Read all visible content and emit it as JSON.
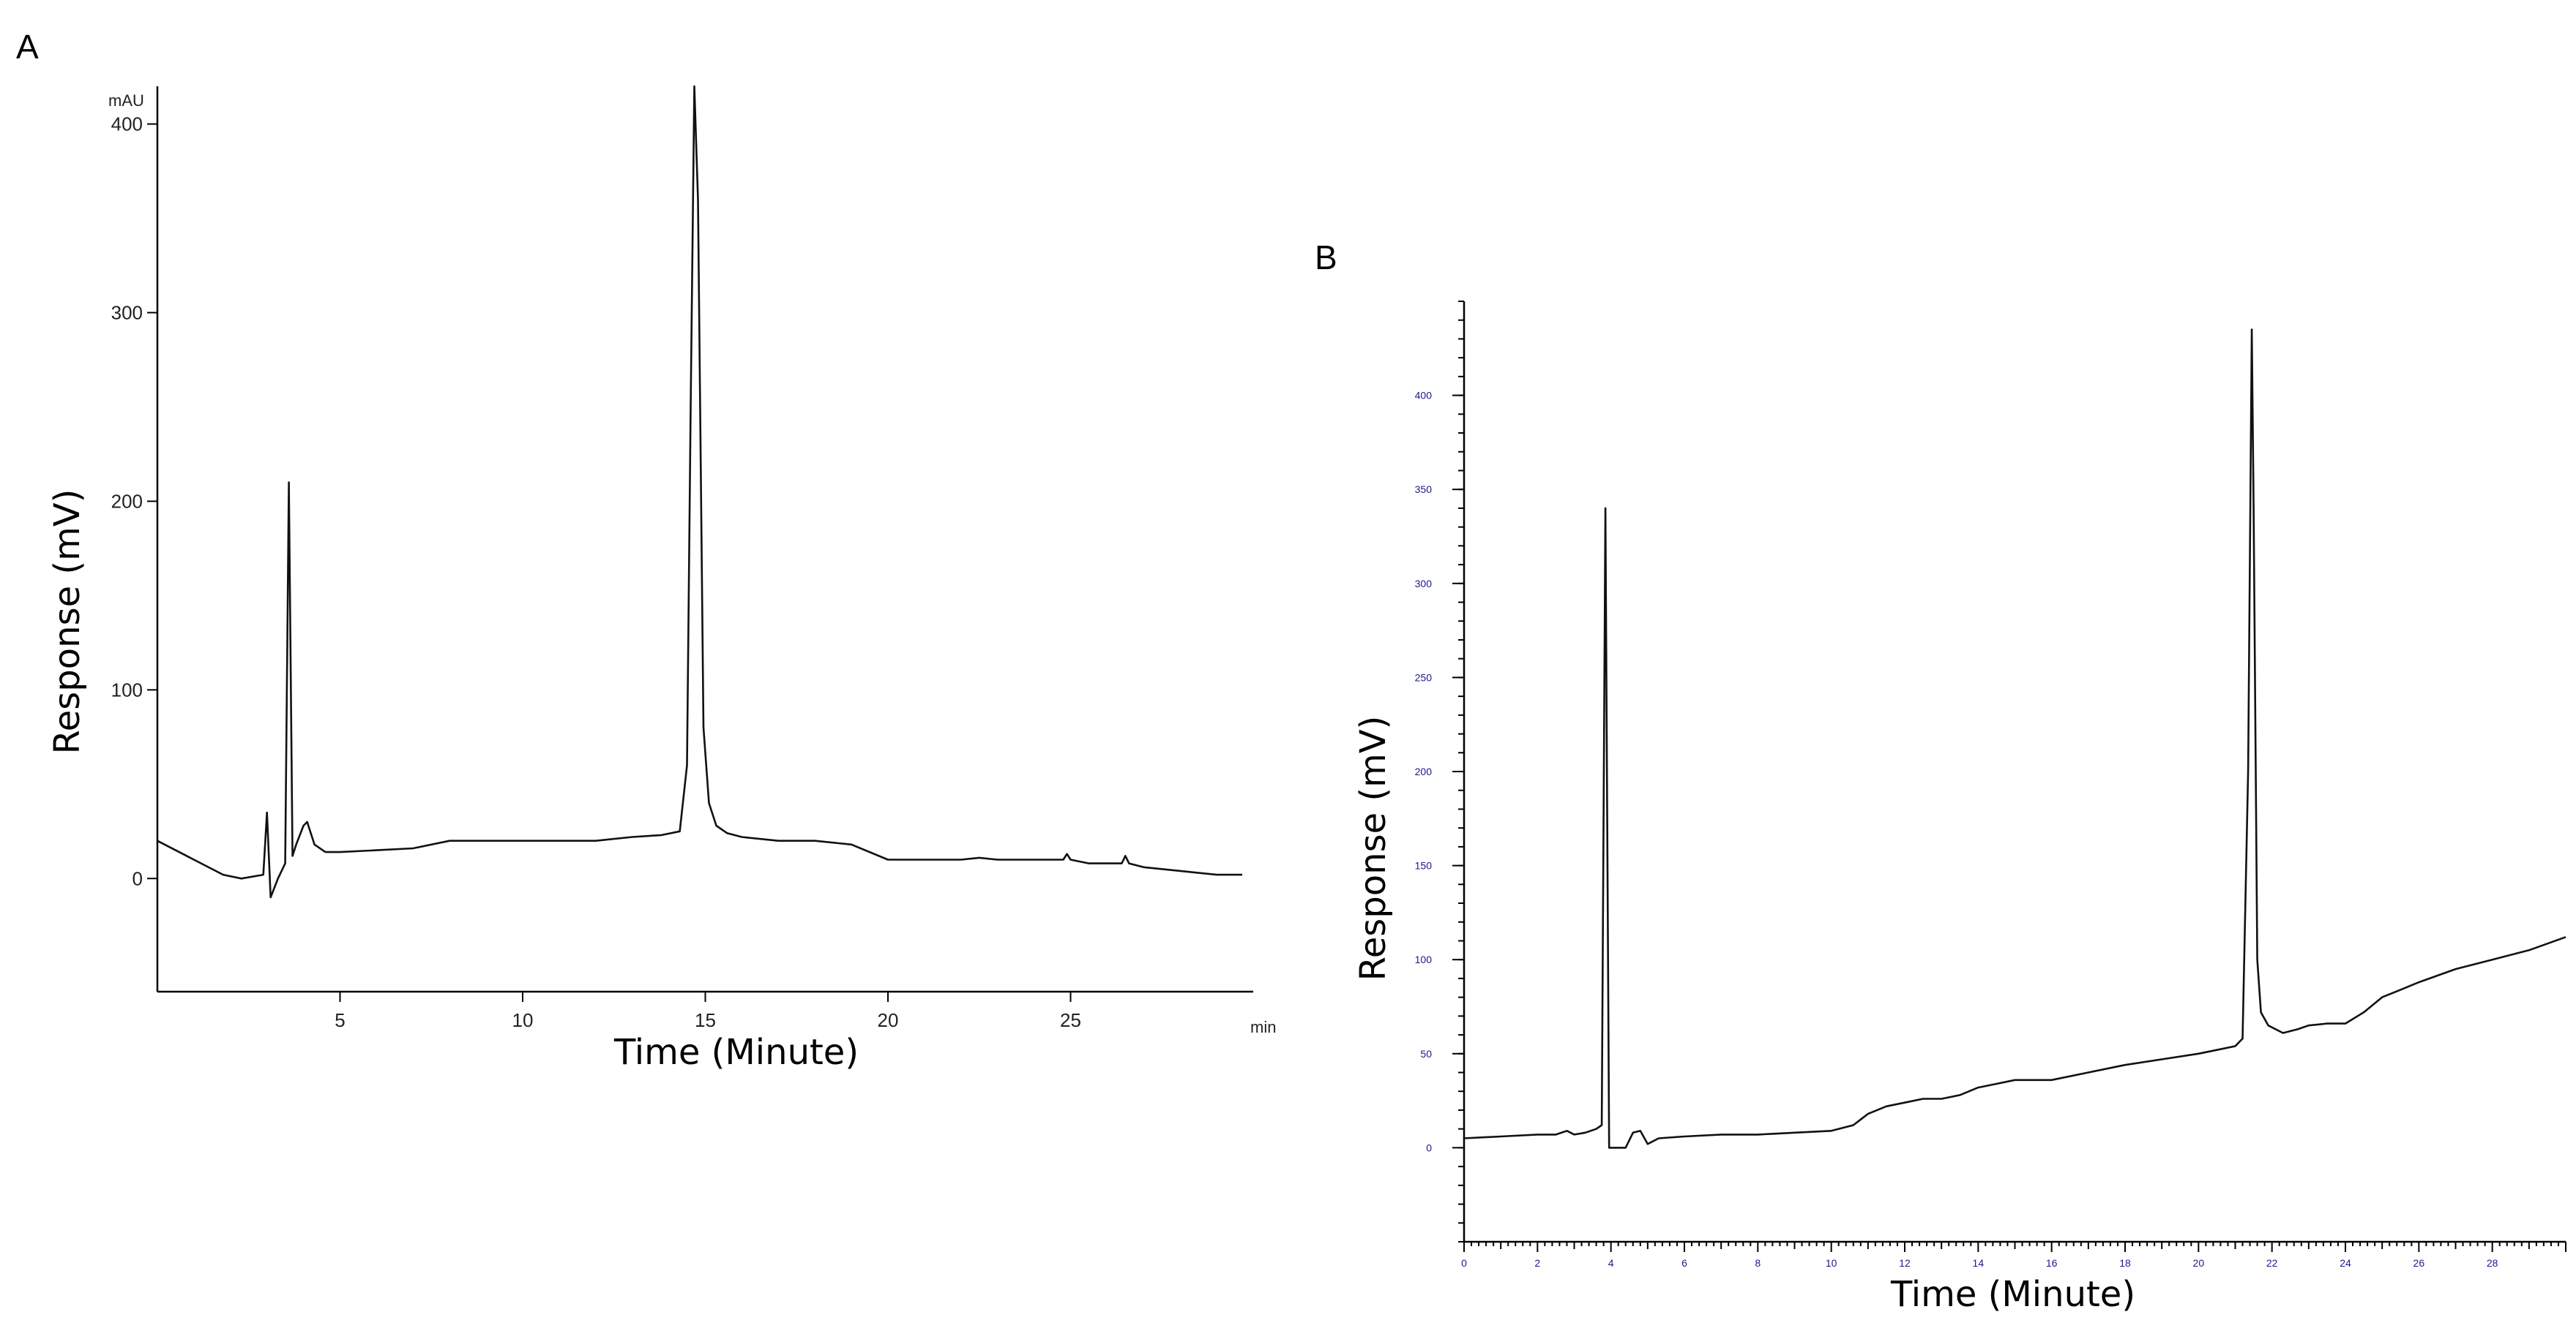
{
  "panels": [
    {
      "letter": "A"
    },
    {
      "letter": "B"
    }
  ],
  "chart_data": [
    {
      "type": "line",
      "panel": "A",
      "xlabel": "Time (Minute)",
      "ylabel": "Response (mV)",
      "y_unit_label": "mAU",
      "x_unit_label": "min",
      "xlim": [
        0,
        30
      ],
      "ylim": [
        -60,
        420
      ],
      "x_ticks": [
        5,
        10,
        15,
        20,
        25
      ],
      "y_ticks": [
        0,
        100,
        200,
        300,
        400
      ],
      "grid": false,
      "series": [
        {
          "x": [
            0,
            1,
            1.8,
            2.3,
            2.9,
            3.0,
            3.1,
            3.3,
            3.5,
            3.6,
            3.7,
            3.8,
            4.0,
            4.1,
            4.3,
            4.6,
            5,
            6,
            7,
            8,
            9,
            10,
            11,
            12,
            13,
            13.8,
            14.3,
            14.5,
            14.6,
            14.7,
            14.8,
            14.95,
            15.1,
            15.3,
            15.6,
            16,
            17,
            18,
            19,
            20,
            21,
            22,
            22.5,
            23,
            24,
            24.8,
            24.9,
            25.0,
            25.5,
            26.4,
            26.5,
            26.6,
            27,
            28,
            29,
            29.7
          ],
          "y": [
            20,
            10,
            2,
            0,
            2,
            35,
            -10,
            0,
            8,
            210,
            12,
            18,
            28,
            30,
            18,
            14,
            14,
            15,
            16,
            20,
            20,
            20,
            20,
            20,
            22,
            23,
            25,
            60,
            250,
            420,
            360,
            80,
            40,
            28,
            24,
            22,
            20,
            20,
            18,
            10,
            10,
            10,
            11,
            10,
            10,
            10,
            13,
            10,
            8,
            8,
            12,
            8,
            6,
            4,
            2,
            2
          ]
        }
      ]
    },
    {
      "type": "line",
      "panel": "B",
      "xlabel": "Time (Minute)",
      "ylabel": "Response (mV)",
      "xlim": [
        0,
        30
      ],
      "ylim": [
        -50,
        450
      ],
      "x_ticks": [
        0,
        2,
        4,
        6,
        8,
        10,
        12,
        14,
        16,
        18,
        20,
        22,
        24,
        26,
        28
      ],
      "y_ticks": [
        0,
        50,
        100,
        150,
        200,
        250,
        300,
        350,
        400
      ],
      "grid": false,
      "series": [
        {
          "x": [
            0,
            1,
            2,
            2.5,
            2.8,
            3.0,
            3.3,
            3.6,
            3.75,
            3.85,
            3.95,
            4.1,
            4.4,
            4.6,
            4.8,
            5.0,
            5.3,
            6,
            7,
            8,
            9,
            10,
            10.6,
            11,
            11.5,
            12,
            12.5,
            13,
            13.5,
            14,
            14.5,
            15,
            16,
            17,
            18,
            19,
            20,
            20.5,
            21.0,
            21.2,
            21.35,
            21.45,
            21.5,
            21.6,
            21.7,
            21.9,
            22.3,
            22.7,
            23.0,
            23.5,
            24.0,
            24.5,
            25.0,
            25.5,
            26,
            27,
            28,
            29,
            30
          ],
          "y": [
            5,
            6,
            7,
            7,
            9,
            7,
            8,
            10,
            12,
            340,
            0,
            0,
            0,
            8,
            9,
            2,
            5,
            6,
            7,
            7,
            8,
            9,
            12,
            18,
            22,
            24,
            26,
            26,
            28,
            32,
            34,
            36,
            36,
            40,
            44,
            47,
            50,
            52,
            54,
            58,
            200,
            435,
            340,
            100,
            72,
            65,
            61,
            63,
            65,
            66,
            66,
            72,
            80,
            84,
            88,
            95,
            100,
            105,
            112
          ]
        }
      ]
    }
  ]
}
